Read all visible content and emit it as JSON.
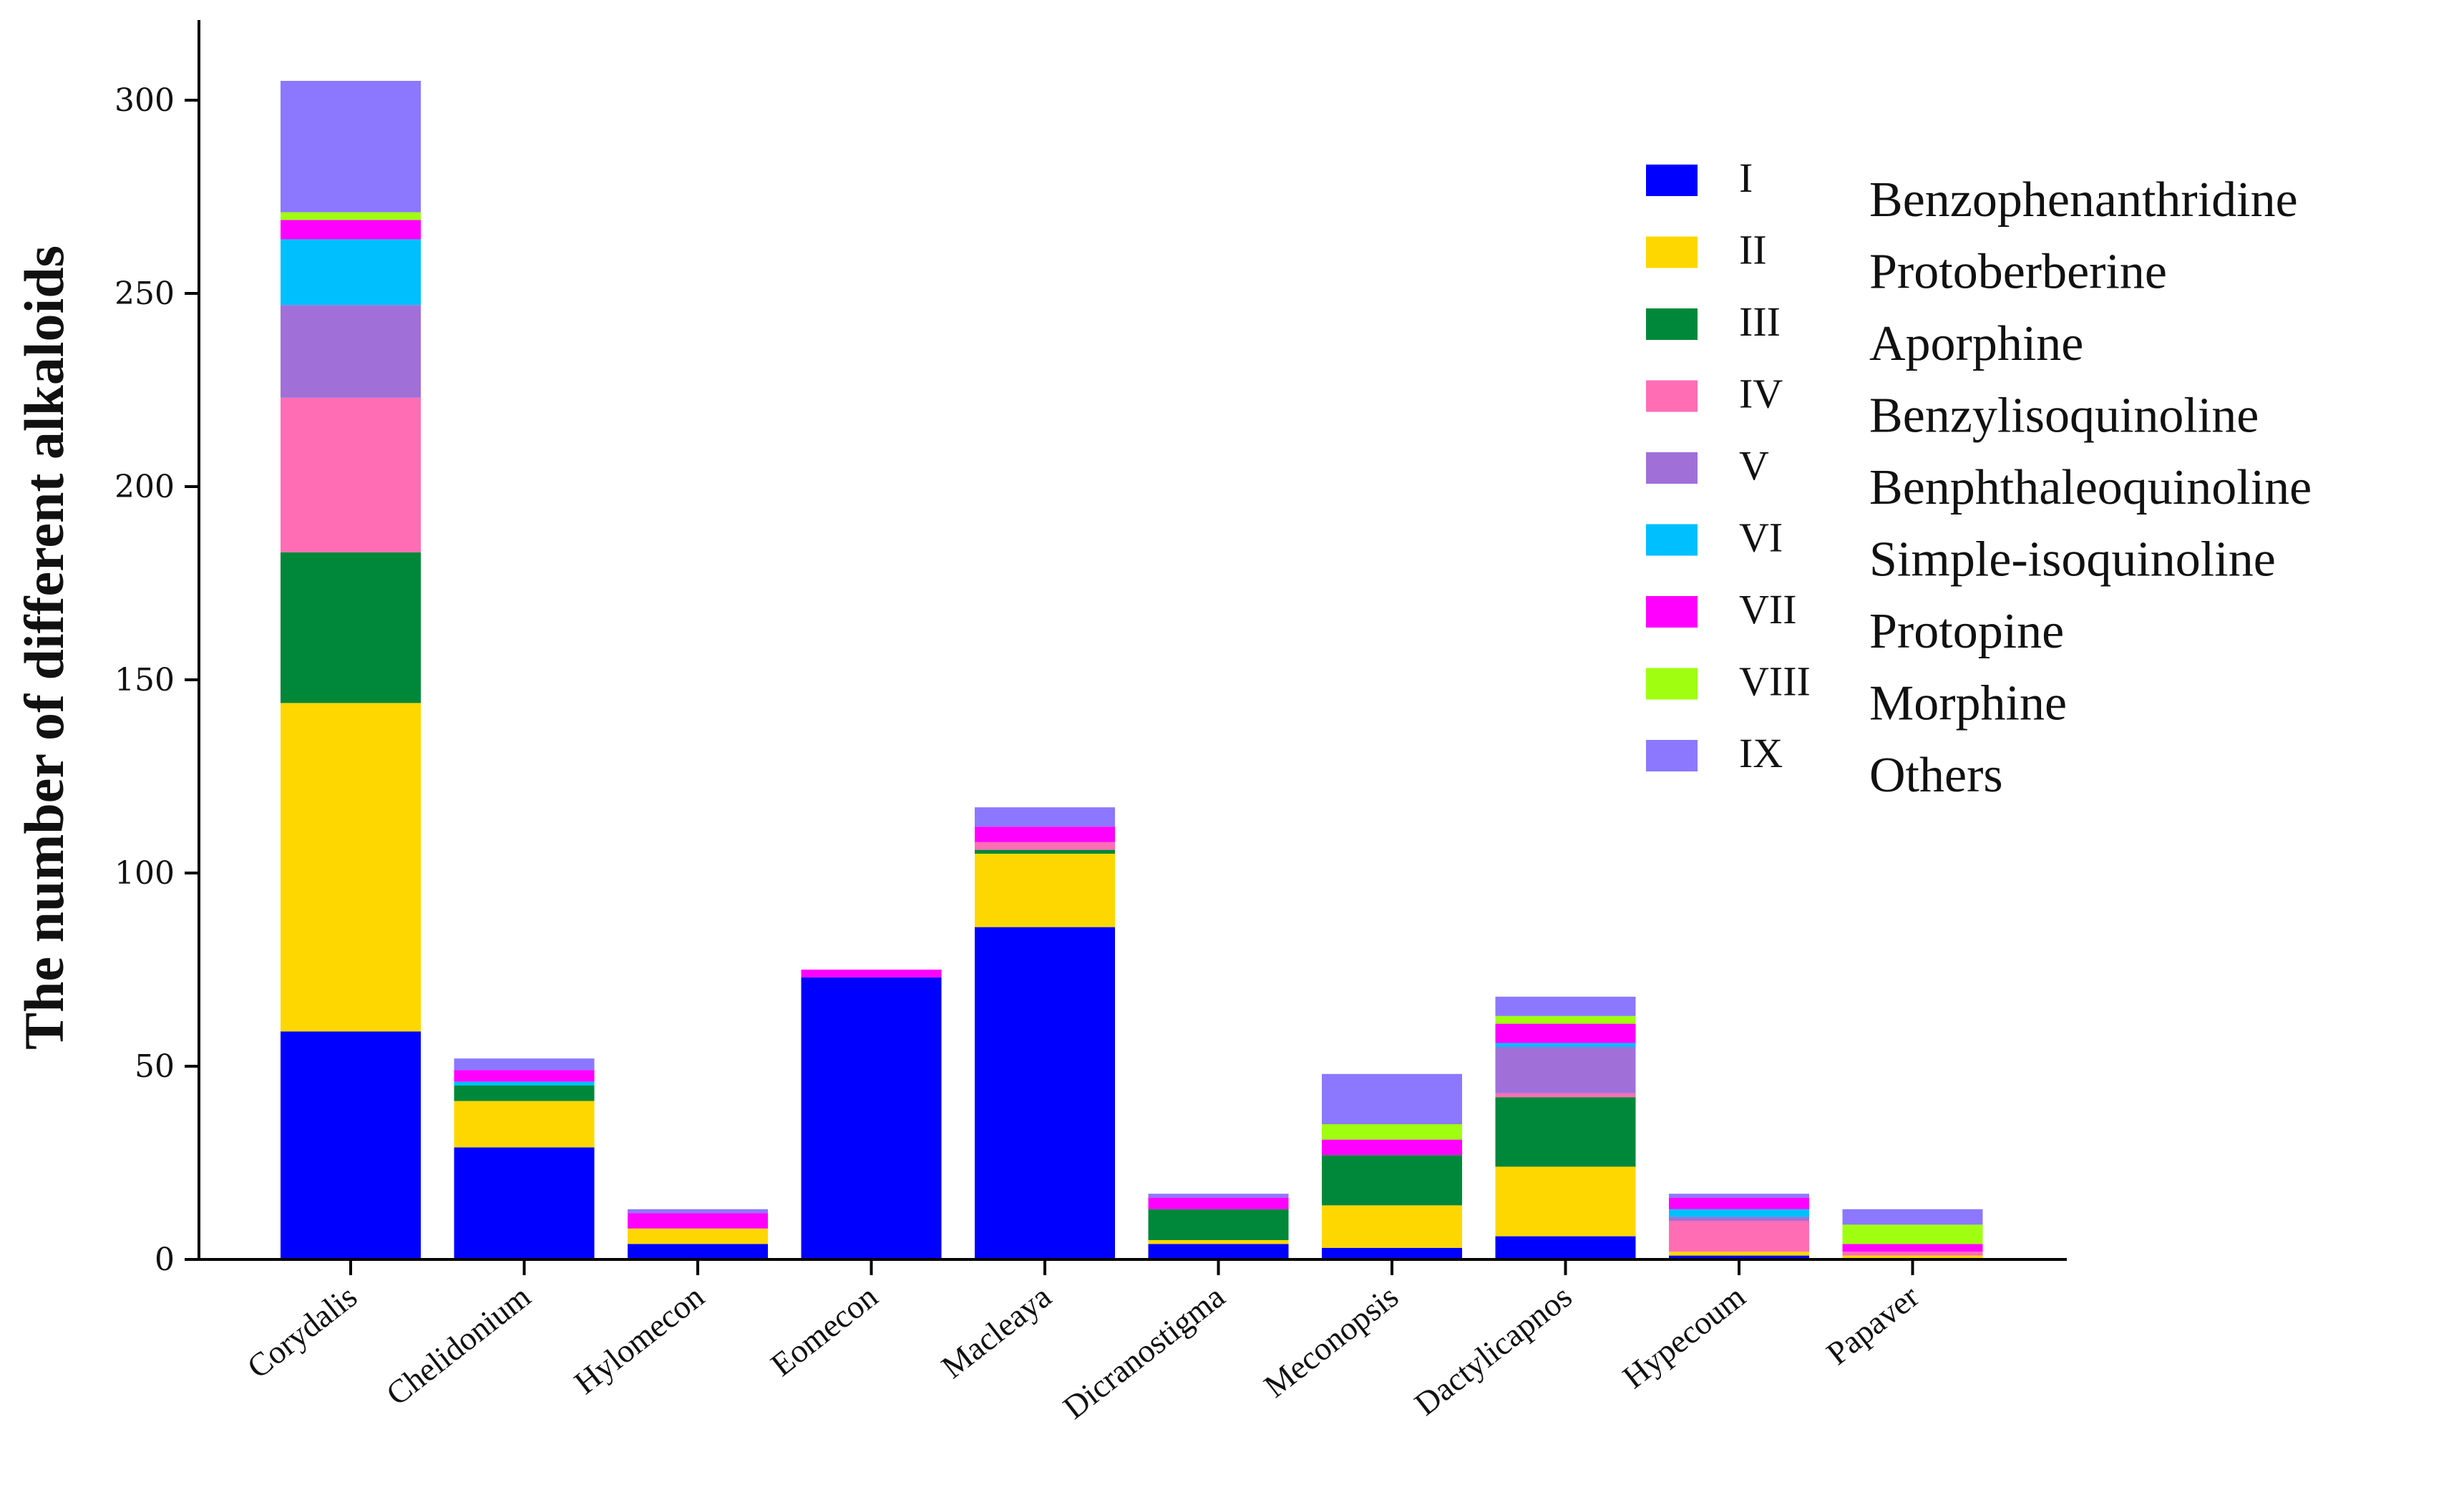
{
  "chart_data": {
    "type": "bar",
    "stacked": true,
    "title": "",
    "xlabel": "",
    "ylabel": "The number of different alkaloids",
    "ylim": [
      0,
      320
    ],
    "yticks": [
      0,
      50,
      100,
      150,
      200,
      250,
      300
    ],
    "grid": false,
    "legend_position": "top-right",
    "categories": [
      "Corydalis",
      "Chelidonium",
      "Hylomecon",
      "Eomecon",
      "Macleaya",
      "Dicranostigma",
      "Meconopsis",
      "Dactylicapnos",
      "Hypecoum",
      "Papaver"
    ],
    "series": [
      {
        "code": "I",
        "name": "Benzophenanthridine",
        "color": "#0000ff",
        "values": [
          59,
          29,
          4,
          73,
          86,
          4,
          3,
          6,
          1,
          0
        ]
      },
      {
        "code": "II",
        "name": "Protoberberine",
        "color": "#ffd700",
        "values": [
          85,
          12,
          4,
          0,
          19,
          1,
          11,
          18,
          1,
          1
        ]
      },
      {
        "code": "III",
        "name": "Aporphine",
        "color": "#00883a",
        "values": [
          39,
          4,
          0,
          0,
          1,
          8,
          13,
          18,
          0,
          0
        ]
      },
      {
        "code": "IV",
        "name": "Benzylisoquinoline",
        "color": "#ff6eb4",
        "values": [
          40,
          0,
          0,
          0,
          2,
          0,
          0,
          1,
          8,
          1
        ]
      },
      {
        "code": "V",
        "name": "Benphthaleoquinoline",
        "color": "#a070d8",
        "values": [
          24,
          0,
          0,
          0,
          0,
          0,
          0,
          12,
          1,
          0
        ]
      },
      {
        "code": "VI",
        "name": "Simple-isoquinoline",
        "color": "#00bfff",
        "values": [
          17,
          1,
          0,
          0,
          0,
          0,
          0,
          1,
          2,
          0
        ]
      },
      {
        "code": "VII",
        "name": "Protopine",
        "color": "#ff00ff",
        "values": [
          5,
          3,
          4,
          2,
          4,
          3,
          4,
          5,
          3,
          2
        ]
      },
      {
        "code": "VIII",
        "name": "Morphine",
        "color": "#a0ff10",
        "values": [
          2,
          0,
          0,
          0,
          0,
          0,
          4,
          2,
          0,
          5
        ]
      },
      {
        "code": "IX",
        "name": "Others",
        "color": "#8c78ff",
        "values": [
          34,
          3,
          1,
          0,
          5,
          1,
          13,
          5,
          1,
          4
        ]
      }
    ]
  }
}
